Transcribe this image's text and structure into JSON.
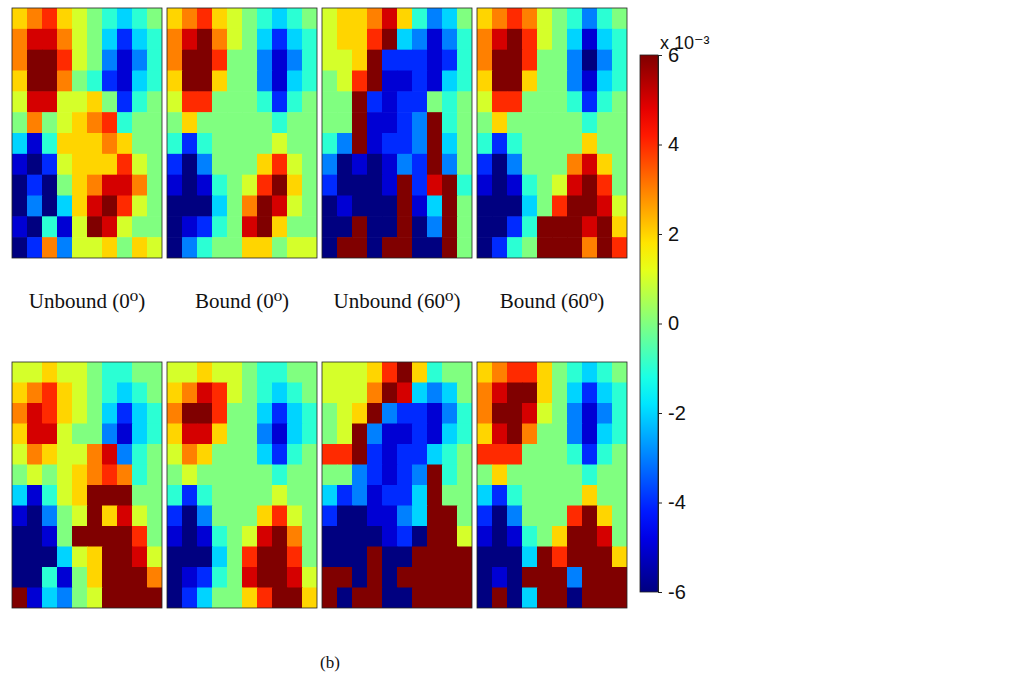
{
  "chart_data": {
    "type": "heatmap",
    "color": "jet",
    "tick_labels": false,
    "column_labels": [
      "Unbound (0⁰)",
      "Bound (0⁰)",
      "Unbound (60⁰)",
      "Bound (60⁰)"
    ],
    "caption": "(b)",
    "colorbar": {
      "range": [
        -6,
        6
      ],
      "ticks": [
        6,
        4,
        2,
        0,
        -2,
        -4,
        -6
      ],
      "label": "x 10⁻³"
    },
    "panels": [
      [
        [
          [
            2,
            3,
            4,
            2,
            1,
            0,
            -1,
            -2,
            -1,
            0
          ],
          [
            3,
            5,
            5,
            3,
            1,
            0,
            -2,
            -4,
            -2,
            -1
          ],
          [
            3,
            6,
            6,
            4,
            1,
            0,
            -3,
            -5,
            -3,
            -1
          ],
          [
            2,
            6,
            6,
            3,
            0,
            -1,
            -4,
            -5,
            -2,
            -1
          ],
          [
            1,
            5,
            5,
            1,
            1,
            2,
            0,
            -4,
            -1,
            0
          ],
          [
            0,
            3,
            0,
            1,
            2,
            3,
            4,
            -1,
            0,
            0
          ],
          [
            -2,
            -5,
            -1,
            2,
            2,
            2,
            3,
            2,
            0,
            0
          ],
          [
            -5,
            -6,
            -4,
            1,
            2,
            2,
            2,
            4,
            1,
            0
          ],
          [
            -6,
            -4,
            -6,
            0,
            2,
            3,
            5,
            5,
            3,
            0
          ],
          [
            -6,
            -3,
            -6,
            -2,
            2,
            5,
            6,
            4,
            1,
            0
          ],
          [
            -5,
            -6,
            -1,
            -5,
            1,
            6,
            5,
            1,
            0,
            0
          ],
          [
            -6,
            -4,
            3,
            -3,
            1,
            1,
            2,
            0,
            2,
            1
          ]
        ],
        [
          [
            2,
            3,
            4,
            2,
            1,
            0,
            -1,
            -2,
            -1,
            0
          ],
          [
            3,
            5,
            6,
            3,
            1,
            0,
            -2,
            -4,
            -2,
            -1
          ],
          [
            3,
            6,
            6,
            4,
            0,
            0,
            -3,
            -5,
            -3,
            -1
          ],
          [
            2,
            6,
            6,
            2,
            0,
            0,
            -3,
            -5,
            -2,
            -1
          ],
          [
            1,
            4,
            4,
            0,
            0,
            0,
            -1,
            -4,
            -1,
            0
          ],
          [
            0,
            2,
            0,
            0,
            0,
            0,
            0,
            -1,
            0,
            0
          ],
          [
            -1,
            -4,
            -1,
            0,
            0,
            0,
            0,
            1,
            0,
            0
          ],
          [
            -4,
            -6,
            -3,
            0,
            0,
            0,
            2,
            4,
            1,
            0
          ],
          [
            -5,
            -6,
            -5,
            -1,
            0,
            1,
            4,
            6,
            2,
            0
          ],
          [
            -6,
            -6,
            -6,
            -2,
            0,
            3,
            6,
            5,
            1,
            0
          ],
          [
            -6,
            -5,
            -4,
            -1,
            0,
            5,
            6,
            2,
            0,
            0
          ],
          [
            -6,
            -3,
            -1,
            0,
            0,
            2,
            2,
            0,
            1,
            1
          ]
        ],
        [
          [
            1,
            2,
            2,
            3,
            5,
            2,
            -1,
            -3,
            -2,
            0
          ],
          [
            1,
            2,
            2,
            4,
            6,
            -2,
            -3,
            -5,
            -3,
            -1
          ],
          [
            1,
            1,
            2,
            6,
            -4,
            -4,
            -4,
            -5,
            -4,
            -1
          ],
          [
            0,
            1,
            4,
            6,
            -5,
            -5,
            -4,
            -5,
            -2,
            -1
          ],
          [
            0,
            0,
            6,
            -4,
            -5,
            -4,
            -4,
            0,
            -1,
            0
          ],
          [
            0,
            0,
            6,
            -5,
            -5,
            -4,
            -3,
            6,
            -1,
            0
          ],
          [
            -1,
            -3,
            6,
            -5,
            -4,
            -4,
            -3,
            6,
            -2,
            0
          ],
          [
            -3,
            -6,
            -5,
            -6,
            -5,
            -3,
            -4,
            6,
            -3,
            0
          ],
          [
            -4,
            -6,
            -6,
            -6,
            -5,
            6,
            -4,
            5,
            6,
            -1
          ],
          [
            -6,
            -5,
            -6,
            -6,
            -6,
            6,
            -5,
            -2,
            6,
            0
          ],
          [
            -6,
            -6,
            6,
            -6,
            -6,
            6,
            -6,
            -3,
            6,
            0
          ],
          [
            -6,
            6,
            6,
            -6,
            6,
            6,
            -6,
            -6,
            6,
            0
          ]
        ],
        [
          [
            2,
            3,
            4,
            3,
            1,
            0,
            -1,
            -3,
            -1,
            0
          ],
          [
            3,
            5,
            6,
            4,
            1,
            0,
            -2,
            -5,
            -2,
            -1
          ],
          [
            3,
            6,
            6,
            4,
            0,
            0,
            -3,
            -6,
            -3,
            -1
          ],
          [
            2,
            6,
            6,
            2,
            0,
            0,
            -3,
            -5,
            -2,
            -1
          ],
          [
            1,
            4,
            4,
            0,
            0,
            0,
            -1,
            -4,
            -1,
            0
          ],
          [
            0,
            2,
            0,
            0,
            0,
            0,
            0,
            -1,
            0,
            0
          ],
          [
            -1,
            -4,
            -1,
            0,
            0,
            0,
            0,
            2,
            0,
            0
          ],
          [
            -4,
            -6,
            -3,
            0,
            0,
            0,
            3,
            5,
            2,
            0
          ],
          [
            -5,
            -6,
            -5,
            -1,
            0,
            1,
            5,
            6,
            4,
            0
          ],
          [
            -6,
            -6,
            -6,
            -2,
            0,
            4,
            6,
            6,
            5,
            1
          ],
          [
            -6,
            -6,
            -4,
            -1,
            6,
            6,
            6,
            5,
            6,
            2
          ],
          [
            -6,
            -4,
            -1,
            0,
            6,
            6,
            6,
            3,
            6,
            4
          ]
        ]
      ],
      [
        [
          [
            1,
            1,
            2,
            1,
            1,
            0,
            -1,
            -1,
            0,
            0
          ],
          [
            2,
            3,
            4,
            2,
            1,
            0,
            -1,
            -2,
            -1,
            0
          ],
          [
            3,
            5,
            4,
            2,
            1,
            0,
            -2,
            -4,
            -2,
            -1
          ],
          [
            2,
            5,
            5,
            1,
            0,
            0,
            -3,
            -5,
            -2,
            -1
          ],
          [
            1,
            3,
            2,
            1,
            1,
            3,
            5,
            -3,
            -1,
            0
          ],
          [
            0,
            1,
            0,
            1,
            2,
            3,
            4,
            3,
            -1,
            0
          ],
          [
            -2,
            -5,
            -1,
            1,
            2,
            6,
            6,
            6,
            0,
            0
          ],
          [
            -5,
            -6,
            -3,
            0,
            1,
            6,
            2,
            5,
            1,
            0
          ],
          [
            -6,
            -6,
            -5,
            0,
            6,
            6,
            6,
            6,
            4,
            0
          ],
          [
            -6,
            -6,
            -6,
            -2,
            1,
            2,
            6,
            6,
            5,
            1
          ],
          [
            -6,
            -6,
            -1,
            -5,
            0,
            2,
            6,
            6,
            6,
            3
          ],
          [
            6,
            -5,
            -2,
            -3,
            0,
            1,
            6,
            6,
            6,
            6
          ]
        ],
        [
          [
            1,
            1,
            2,
            1,
            1,
            0,
            -1,
            -1,
            0,
            0
          ],
          [
            2,
            3,
            5,
            4,
            1,
            0,
            -1,
            -2,
            -1,
            0
          ],
          [
            3,
            6,
            6,
            4,
            0,
            0,
            -2,
            -4,
            -2,
            -1
          ],
          [
            2,
            5,
            5,
            2,
            0,
            0,
            -3,
            -5,
            -2,
            -1
          ],
          [
            1,
            3,
            2,
            0,
            0,
            0,
            -2,
            -4,
            -1,
            0
          ],
          [
            0,
            1,
            0,
            0,
            0,
            0,
            0,
            -1,
            0,
            0
          ],
          [
            -1,
            -4,
            -1,
            0,
            0,
            0,
            0,
            1,
            0,
            0
          ],
          [
            -4,
            -6,
            -3,
            0,
            0,
            0,
            2,
            4,
            1,
            0
          ],
          [
            -5,
            -6,
            -5,
            -1,
            0,
            1,
            5,
            6,
            3,
            0
          ],
          [
            -6,
            -6,
            -6,
            -2,
            0,
            4,
            6,
            6,
            4,
            0
          ],
          [
            -6,
            -5,
            -4,
            -1,
            0,
            5,
            6,
            6,
            5,
            1
          ],
          [
            -6,
            -4,
            -2,
            0,
            0,
            2,
            4,
            6,
            6,
            2
          ]
        ],
        [
          [
            1,
            1,
            1,
            2,
            4,
            6,
            2,
            -1,
            0,
            0
          ],
          [
            1,
            1,
            1,
            3,
            6,
            5,
            -2,
            -3,
            -2,
            0
          ],
          [
            0,
            1,
            2,
            6,
            -3,
            -4,
            -4,
            -5,
            -3,
            -1
          ],
          [
            0,
            1,
            6,
            -3,
            -5,
            -5,
            -4,
            -5,
            -2,
            -1
          ],
          [
            4,
            4,
            6,
            -4,
            -5,
            -4,
            -4,
            -2,
            -1,
            0
          ],
          [
            0,
            0,
            -3,
            -4,
            -5,
            -4,
            -3,
            6,
            -1,
            0
          ],
          [
            -2,
            -4,
            -3,
            -5,
            -4,
            -4,
            -2,
            6,
            0,
            0
          ],
          [
            -4,
            -6,
            -6,
            -5,
            -5,
            -3,
            -2,
            6,
            6,
            0
          ],
          [
            -6,
            -6,
            -6,
            -6,
            -5,
            -4,
            -6,
            6,
            6,
            1
          ],
          [
            -6,
            -6,
            -6,
            6,
            -6,
            -6,
            6,
            6,
            6,
            6
          ],
          [
            6,
            6,
            -6,
            6,
            -6,
            6,
            6,
            6,
            6,
            6
          ],
          [
            6,
            -6,
            6,
            6,
            -6,
            -6,
            6,
            6,
            6,
            6
          ]
        ],
        [
          [
            2,
            3,
            4,
            4,
            2,
            0,
            -1,
            -2,
            -1,
            0
          ],
          [
            3,
            5,
            6,
            6,
            2,
            0,
            -2,
            -4,
            -2,
            -1
          ],
          [
            3,
            6,
            6,
            5,
            1,
            0,
            -3,
            -5,
            -3,
            -1
          ],
          [
            2,
            5,
            6,
            3,
            0,
            0,
            -3,
            -5,
            -2,
            -1
          ],
          [
            4,
            4,
            4,
            0,
            0,
            0,
            -1,
            -4,
            -1,
            0
          ],
          [
            0,
            2,
            0,
            0,
            0,
            0,
            0,
            -1,
            0,
            0
          ],
          [
            -2,
            -4,
            -1,
            0,
            0,
            0,
            0,
            2,
            0,
            0
          ],
          [
            -4,
            -6,
            -3,
            0,
            0,
            0,
            4,
            6,
            2,
            0
          ],
          [
            -5,
            -6,
            -5,
            -1,
            0,
            2,
            6,
            6,
            5,
            0
          ],
          [
            -6,
            -6,
            -6,
            -2,
            6,
            4,
            6,
            6,
            6,
            2
          ],
          [
            -6,
            -5,
            -6,
            6,
            6,
            6,
            -3,
            6,
            6,
            6
          ],
          [
            -6,
            6,
            -6,
            -2,
            6,
            6,
            -6,
            6,
            6,
            6
          ]
        ]
      ]
    ]
  }
}
